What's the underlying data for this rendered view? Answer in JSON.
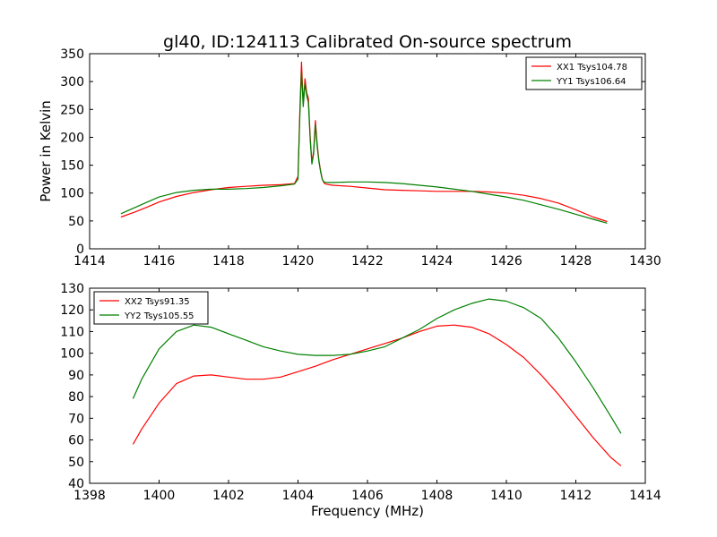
{
  "figure": {
    "title": "gl40, ID:124113 Calibrated On-source spectrum",
    "ylabel": "Power in Kelvin",
    "xlabel": "Frequency (MHz)"
  },
  "chart_data": [
    {
      "type": "line",
      "title": "gl40, ID:124113 Calibrated On-source spectrum",
      "xlabel": "",
      "ylabel": "Power in Kelvin",
      "xlim": [
        1414,
        1430
      ],
      "ylim": [
        0,
        350
      ],
      "xticks": [
        1414,
        1416,
        1418,
        1420,
        1422,
        1424,
        1426,
        1428,
        1430
      ],
      "yticks": [
        0,
        50,
        100,
        150,
        200,
        250,
        300,
        350
      ],
      "grid": false,
      "legend": "top-right",
      "series": [
        {
          "name": "XX1 Tsys104.78",
          "color": "#ff0000",
          "x": [
            1414.9,
            1415.3,
            1415.7,
            1416.0,
            1416.5,
            1417.0,
            1417.5,
            1418.0,
            1418.5,
            1419.0,
            1419.5,
            1419.9,
            1420.0,
            1420.05,
            1420.1,
            1420.15,
            1420.2,
            1420.25,
            1420.3,
            1420.35,
            1420.4,
            1420.45,
            1420.5,
            1420.55,
            1420.6,
            1420.65,
            1420.7,
            1420.75,
            1420.8,
            1420.9,
            1421.0,
            1421.5,
            1422.0,
            1422.5,
            1423.0,
            1423.5,
            1424.0,
            1424.5,
            1425.0,
            1425.5,
            1426.0,
            1426.5,
            1427.0,
            1427.5,
            1428.0,
            1428.5,
            1428.9
          ],
          "y": [
            57,
            66,
            76,
            84,
            94,
            101,
            106,
            110,
            112,
            114,
            115,
            117,
            130,
            240,
            335,
            260,
            305,
            280,
            270,
            200,
            155,
            175,
            230,
            190,
            160,
            140,
            125,
            118,
            116,
            115,
            114,
            112,
            109,
            106,
            105,
            104,
            103,
            103,
            103,
            102,
            100,
            96,
            90,
            82,
            70,
            57,
            49
          ]
        },
        {
          "name": "YY1 Tsys106.64",
          "color": "#008000",
          "x": [
            1414.9,
            1415.3,
            1415.7,
            1416.0,
            1416.5,
            1417.0,
            1417.5,
            1418.0,
            1418.5,
            1419.0,
            1419.5,
            1419.9,
            1420.0,
            1420.05,
            1420.1,
            1420.15,
            1420.2,
            1420.25,
            1420.3,
            1420.35,
            1420.4,
            1420.45,
            1420.5,
            1420.55,
            1420.6,
            1420.65,
            1420.7,
            1420.75,
            1420.8,
            1420.9,
            1421.0,
            1421.5,
            1422.0,
            1422.5,
            1423.0,
            1423.5,
            1424.0,
            1424.5,
            1425.0,
            1425.5,
            1426.0,
            1426.5,
            1427.0,
            1427.5,
            1428.0,
            1428.5,
            1428.9
          ],
          "y": [
            63,
            74,
            85,
            93,
            101,
            105,
            107,
            107,
            108,
            110,
            113,
            116,
            125,
            230,
            318,
            255,
            296,
            275,
            262,
            195,
            152,
            170,
            222,
            185,
            158,
            138,
            124,
            120,
            119,
            119,
            119,
            120,
            120,
            119,
            117,
            114,
            111,
            107,
            103,
            98,
            93,
            87,
            79,
            71,
            62,
            53,
            46
          ]
        }
      ]
    },
    {
      "type": "line",
      "title": "",
      "xlabel": "Frequency (MHz)",
      "ylabel": "",
      "xlim": [
        1398,
        1414
      ],
      "ylim": [
        40,
        130
      ],
      "xticks": [
        1398,
        1400,
        1402,
        1404,
        1406,
        1408,
        1410,
        1412,
        1414
      ],
      "yticks": [
        40,
        50,
        60,
        70,
        80,
        90,
        100,
        110,
        120,
        130
      ],
      "grid": false,
      "legend": "top-left",
      "series": [
        {
          "name": "XX2 Tsys91.35",
          "color": "#ff0000",
          "x": [
            1399.25,
            1399.5,
            1400.0,
            1400.5,
            1401.0,
            1401.5,
            1402.0,
            1402.5,
            1403.0,
            1403.5,
            1404.0,
            1404.5,
            1405.0,
            1405.5,
            1406.0,
            1406.5,
            1407.0,
            1407.5,
            1408.0,
            1408.5,
            1409.0,
            1409.5,
            1410.0,
            1410.5,
            1411.0,
            1411.5,
            1412.0,
            1412.5,
            1413.0,
            1413.3
          ],
          "y": [
            58,
            65,
            77,
            86,
            89.5,
            90,
            89,
            88,
            88,
            89,
            91.5,
            94,
            97,
            99.5,
            102,
            104.5,
            107,
            110,
            112.5,
            113,
            112,
            109,
            104,
            98,
            90,
            81,
            71,
            61,
            52,
            48
          ]
        },
        {
          "name": "YY2 Tsys105.55",
          "color": "#008000",
          "x": [
            1399.25,
            1399.5,
            1400.0,
            1400.5,
            1401.0,
            1401.5,
            1402.0,
            1402.5,
            1403.0,
            1403.5,
            1404.0,
            1404.5,
            1405.0,
            1405.5,
            1406.0,
            1406.5,
            1407.0,
            1407.5,
            1408.0,
            1408.5,
            1409.0,
            1409.5,
            1410.0,
            1410.5,
            1411.0,
            1411.5,
            1412.0,
            1412.5,
            1413.0,
            1413.3
          ],
          "y": [
            79,
            88,
            102,
            110,
            113,
            112,
            109,
            106,
            103,
            101,
            99.5,
            99,
            99,
            99.5,
            101,
            103,
            107,
            111,
            116,
            120,
            123,
            125,
            124,
            121,
            116,
            107,
            96,
            84,
            71,
            63
          ]
        }
      ]
    }
  ]
}
